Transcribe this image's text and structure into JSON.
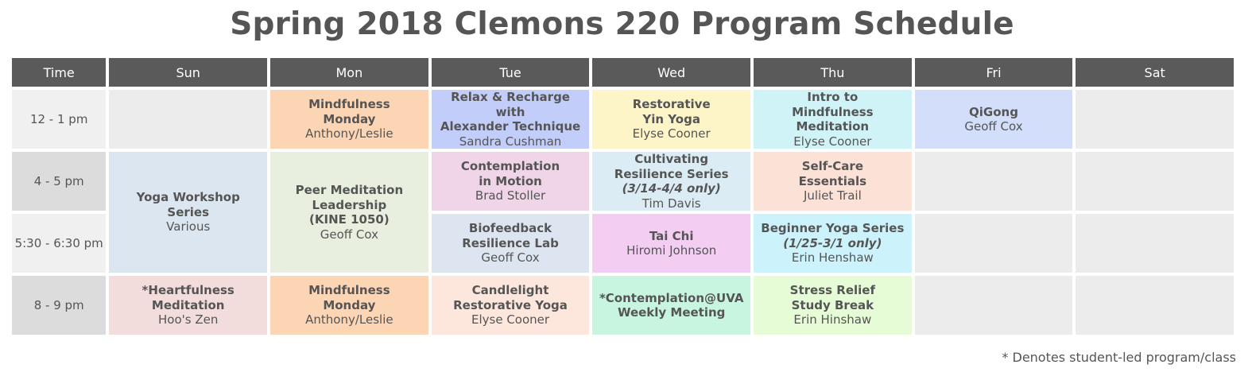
{
  "title": "Spring 2018 Clemons 220 Program Schedule",
  "headers": [
    "Time",
    "Sun",
    "Mon",
    "Tue",
    "Wed",
    "Thu",
    "Fri",
    "Sat"
  ],
  "times": [
    "12 - 1 pm",
    "4 - 5 pm",
    "5:30 - 6:30 pm",
    "8 - 9 pm"
  ],
  "colors": {
    "header_bg": "#5a5a5a",
    "empty_cell": "#ececec",
    "mon_noon": "#fcd5b5",
    "tue_noon": "#c2cdf9",
    "wed_noon": "#fdf4c7",
    "thu_noon": "#cff3f6",
    "fri_noon": "#d3defb",
    "sun_yoga": "#dce6f0",
    "mon_peer": "#e9efdf",
    "tue_contemplation": "#f0d4e8",
    "wed_cultivating": "#dbecf4",
    "thu_selfcare": "#fce1d6",
    "tue_biofeedback": "#dde6f0",
    "wed_taichi": "#f3cdf2",
    "thu_beginner": "#ccf3fb",
    "sun_heartfulness": "#f3dcdc",
    "mon_mindful_eve": "#fcd5b5",
    "tue_candlelight": "#fde7dc",
    "wed_contemplation_uva": "#c8f5e0",
    "thu_stress": "#e6fcd6"
  },
  "events": {
    "mon_noon": {
      "title": "Mindfulness\nMonday",
      "leader": "Anthony/Leslie"
    },
    "tue_noon": {
      "title": "Relax & Recharge\nwith\nAlexander Technique",
      "leader": "Sandra Cushman"
    },
    "wed_noon": {
      "title": "Restorative\nYin Yoga",
      "leader": "Elyse Cooner"
    },
    "thu_noon": {
      "title": "Intro to\nMindfulness Meditation",
      "leader": "Elyse Cooner"
    },
    "fri_noon": {
      "title": "QiGong",
      "leader": "Geoff Cox"
    },
    "sun_yoga": {
      "title": "Yoga Workshop\nSeries",
      "leader": "Various"
    },
    "mon_peer": {
      "title": "Peer Meditation\nLeadership\n(KINE 1050)",
      "leader": "Geoff Cox"
    },
    "tue_contemplation": {
      "title": "Contemplation\nin Motion",
      "leader": "Brad Stoller"
    },
    "wed_cultivating": {
      "title": "Cultivating\nResilience Series",
      "note": "(3/14-4/4 only)",
      "leader": "Tim Davis"
    },
    "thu_selfcare": {
      "title": "Self-Care\nEssentials",
      "leader": "Juliet Trail"
    },
    "tue_biofeedback": {
      "title": "Biofeedback\nResilience Lab",
      "leader": "Geoff Cox"
    },
    "wed_taichi": {
      "title": "Tai Chi",
      "leader": "Hiromi Johnson"
    },
    "thu_beginner": {
      "title": "Beginner Yoga Series",
      "note": "(1/25-3/1 only)",
      "leader": "Erin Henshaw"
    },
    "sun_heartfulness": {
      "title": "*Heartfulness\nMeditation",
      "leader": "Hoo's Zen"
    },
    "mon_mindful_eve": {
      "title": "Mindfulness\nMonday",
      "leader": "Anthony/Leslie"
    },
    "tue_candlelight": {
      "title": "Candlelight\nRestorative Yoga",
      "leader": "Elyse Cooner"
    },
    "wed_contemplation_uva": {
      "title": "*Contemplation@UVA\nWeekly Meeting"
    },
    "thu_stress": {
      "title": "Stress Relief\nStudy Break",
      "leader": "Erin Hinshaw"
    }
  },
  "footnote": "* Denotes student-led program/class"
}
